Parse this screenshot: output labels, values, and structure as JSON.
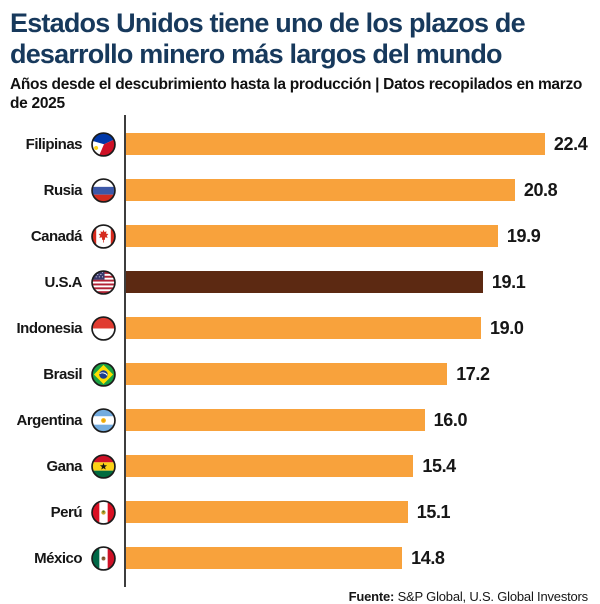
{
  "header": {
    "title_line1": "Estados Unidos tiene uno de los plazos de",
    "title_line2": "desarrollo minero más largos del mundo",
    "subtitle": "Años desde el descubrimiento hasta la producción | Datos recopilados en marzo de 2025"
  },
  "chart_data": {
    "type": "bar",
    "orientation": "horizontal",
    "title": "Estados Unidos tiene uno de los plazos de desarrollo minero más largos del mundo",
    "subtitle": "Años desde el descubrimiento hasta la producción",
    "note": "Datos recopilados en marzo de 2025",
    "categories": [
      "Filipinas",
      "Rusia",
      "Canadá",
      "U.S.A",
      "Indonesia",
      "Brasil",
      "Argentina",
      "Gana",
      "Perú",
      "México"
    ],
    "values": [
      22.4,
      20.8,
      19.9,
      19.1,
      19.0,
      17.2,
      16.0,
      15.4,
      15.1,
      14.8
    ],
    "value_labels": [
      "22.4",
      "20.8",
      "19.9",
      "19.1",
      "19.0",
      "17.2",
      "16.0",
      "15.4",
      "15.1",
      "14.8"
    ],
    "flag_icons": [
      "philippines-flag-icon",
      "russia-flag-icon",
      "canada-flag-icon",
      "usa-flag-icon",
      "indonesia-flag-icon",
      "brazil-flag-icon",
      "argentina-flag-icon",
      "ghana-flag-icon",
      "peru-flag-icon",
      "mexico-flag-icon"
    ],
    "highlight_index": 3,
    "xlim": [
      0,
      24.8
    ],
    "grid": false,
    "legend": false,
    "bar_color": "#F8A23C",
    "highlight_color": "#5C2912"
  },
  "footer": {
    "source_label": "Fuente:",
    "source_text": " S&P Global, U.S. Global Investors"
  },
  "colors": {
    "title": "#17395C",
    "bar_orange": "#F8A23C",
    "bar_brown": "#5C2912",
    "axis_line": "#3D3D3D",
    "text": "#161616"
  }
}
